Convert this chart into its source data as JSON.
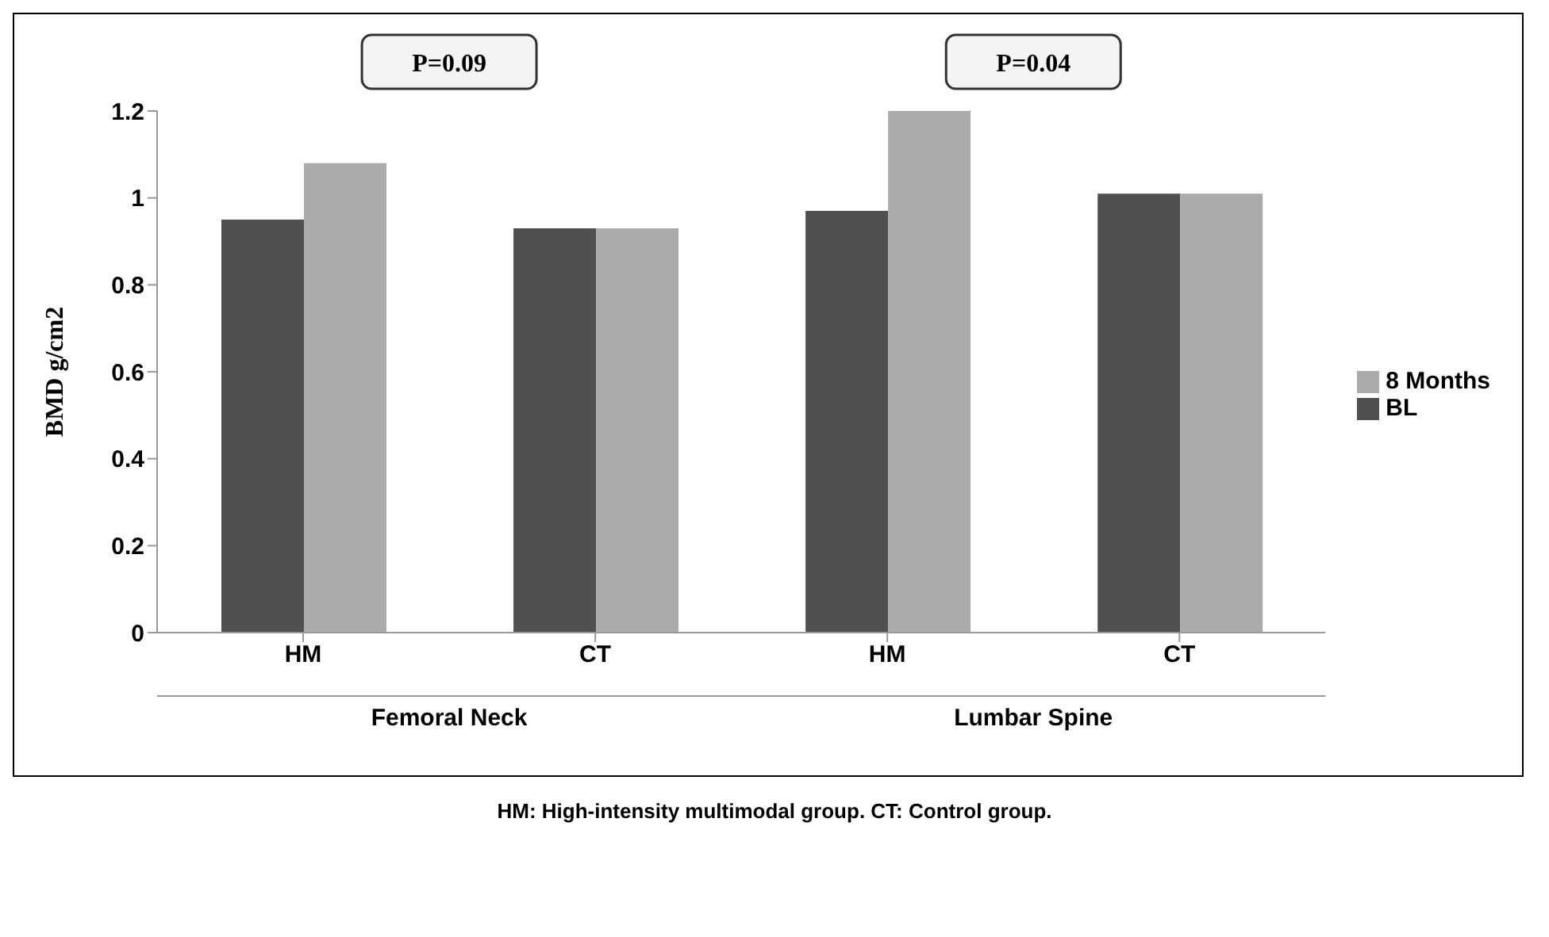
{
  "chart_data": {
    "type": "bar",
    "ylabel": "BMD g/cm2",
    "categories": [
      "HM",
      "CT",
      "HM",
      "CT"
    ],
    "series": [
      {
        "name": "BL",
        "color": "#505050",
        "values": [
          0.95,
          0.93,
          0.97,
          1.01
        ]
      },
      {
        "name": "8 Months",
        "color": "#ababab",
        "values": [
          1.08,
          0.93,
          1.2,
          1.01
        ]
      }
    ],
    "ylim": [
      0,
      1.2
    ],
    "yticks": [
      0,
      0.2,
      0.4,
      0.6,
      0.8,
      1,
      1.2
    ],
    "grid": false,
    "legend": "right",
    "annotations": [
      "P=0.09",
      "P=0.04",
      "Femoral Neck",
      "Lumbar Spine",
      "HM: High-intensity multimodal group. CT: Control group."
    ]
  }
}
